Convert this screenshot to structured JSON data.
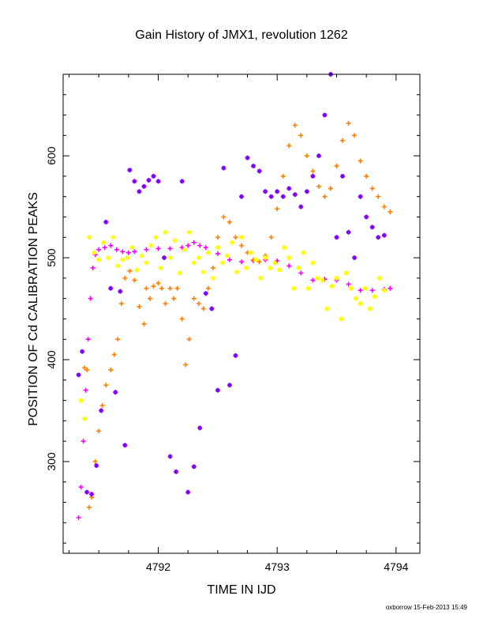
{
  "chart_data": {
    "type": "scatter",
    "title": "Gain History of JMX1, revolution 1262",
    "xlabel": "TIME IN IJD",
    "ylabel": "POSITION OF Cd CALIBRATION PEAKS",
    "xlim": [
      4791.2,
      4794.2
    ],
    "ylim": [
      210,
      680
    ],
    "xticks": [
      4792,
      4793,
      4794
    ],
    "yticks": [
      300,
      400,
      500,
      600
    ],
    "grid": false,
    "legend": "none",
    "series": [
      {
        "color": "#ff00ff",
        "marker": "+",
        "x": [
          4791.33,
          4791.35,
          4791.37,
          4791.39,
          4791.41,
          4791.43,
          4791.45,
          4791.47,
          4791.5,
          4791.55,
          4791.6,
          4791.65,
          4791.7,
          4791.75,
          4791.8,
          4791.9,
          4792.0,
          4792.1,
          4792.2,
          4792.25,
          4792.3,
          4792.35,
          4792.4,
          4792.5,
          4792.6,
          4792.7,
          4792.8,
          4792.9,
          4793.0,
          4793.1,
          4793.2,
          4793.3,
          4793.4,
          4793.5,
          4793.6,
          4793.7,
          4793.8,
          4793.9,
          4793.95
        ],
        "y": [
          245,
          275,
          320,
          370,
          420,
          460,
          490,
          503,
          508,
          510,
          512,
          508,
          506,
          505,
          506,
          508,
          509,
          509,
          510,
          512,
          515,
          512,
          510,
          504,
          498,
          496,
          497,
          498,
          497,
          492,
          485,
          478,
          479,
          478,
          474,
          468,
          468,
          469,
          470
        ]
      },
      {
        "color": "#ff8000",
        "marker": "+",
        "x": [
          4791.38,
          4791.4,
          4791.42,
          4791.44,
          4791.47,
          4791.5,
          4791.53,
          4791.56,
          4791.6,
          4791.63,
          4791.66,
          4791.69,
          4791.72,
          4791.76,
          4791.8,
          4791.84,
          4791.88,
          4791.9,
          4791.93,
          4791.96,
          4792.0,
          4792.03,
          4792.06,
          4792.1,
          4792.13,
          4792.16,
          4792.2,
          4792.23,
          4792.26,
          4792.3,
          4792.34,
          4792.38,
          4792.42,
          4792.46,
          4792.5,
          4792.55,
          4792.6,
          4792.65,
          4792.7,
          4792.75,
          4792.8,
          4792.85,
          4792.9,
          4792.95,
          4793.0,
          4793.05,
          4793.1,
          4793.15,
          4793.2,
          4793.25,
          4793.3,
          4793.35,
          4793.4,
          4793.45,
          4793.5,
          4793.55,
          4793.6,
          4793.65,
          4793.7,
          4793.75,
          4793.8,
          4793.85,
          4793.9,
          4793.95
        ],
        "y": [
          392,
          390,
          255,
          265,
          300,
          330,
          355,
          375,
          390,
          405,
          420,
          455,
          480,
          487,
          478,
          452,
          435,
          470,
          460,
          472,
          475,
          470,
          455,
          470,
          460,
          470,
          440,
          395,
          420,
          460,
          455,
          450,
          470,
          490,
          520,
          540,
          535,
          520,
          512,
          505,
          498,
          496,
          502,
          520,
          548,
          580,
          610,
          630,
          620,
          600,
          585,
          570,
          560,
          568,
          590,
          615,
          632,
          620,
          595,
          580,
          568,
          560,
          550,
          545
        ]
      },
      {
        "color": "#ffff00",
        "marker": "*",
        "x": [
          4791.35,
          4791.38,
          4791.42,
          4791.46,
          4791.5,
          4791.54,
          4791.58,
          4791.62,
          4791.66,
          4791.7,
          4791.74,
          4791.78,
          4791.82,
          4791.86,
          4791.9,
          4791.94,
          4791.98,
          4792.02,
          4792.06,
          4792.1,
          4792.14,
          4792.18,
          4792.22,
          4792.26,
          4792.3,
          4792.34,
          4792.38,
          4792.42,
          4792.46,
          4792.5,
          4792.54,
          4792.58,
          4792.62,
          4792.66,
          4792.7,
          4792.74,
          4792.78,
          4792.82,
          4792.86,
          4792.9,
          4792.94,
          4792.98,
          4793.02,
          4793.06,
          4793.1,
          4793.14,
          4793.18,
          4793.22,
          4793.26,
          4793.3,
          4793.34,
          4793.38,
          4793.42,
          4793.46,
          4793.5,
          4793.54,
          4793.58,
          4793.62,
          4793.66,
          4793.7,
          4793.74,
          4793.78,
          4793.82,
          4793.86,
          4793.9
        ],
        "y": [
          360,
          342,
          520,
          505,
          498,
          515,
          500,
          520,
          492,
          498,
          500,
          510,
          488,
          502,
          495,
          512,
          520,
          490,
          525,
          500,
          517,
          485,
          508,
          525,
          495,
          500,
          486,
          505,
          480,
          510,
          495,
          502,
          515,
          486,
          520,
          490,
          505,
          498,
          480,
          500,
          490,
          495,
          488,
          510,
          500,
          470,
          490,
          505,
          470,
          495,
          480,
          478,
          450,
          472,
          480,
          440,
          485,
          470,
          460,
          455,
          470,
          450,
          462,
          480,
          468
        ]
      },
      {
        "color": "#8000ff",
        "marker": "*",
        "x": [
          4791.33,
          4791.36,
          4791.4,
          4791.44,
          4791.48,
          4791.52,
          4791.56,
          4791.6,
          4791.64,
          4791.68,
          4791.72,
          4791.76,
          4791.8,
          4791.84,
          4791.88,
          4791.92,
          4791.96,
          4792.0,
          4792.05,
          4792.1,
          4792.15,
          4792.2,
          4792.25,
          4792.3,
          4792.35,
          4792.4,
          4792.45,
          4792.5,
          4792.55,
          4792.6,
          4792.65,
          4792.7,
          4792.75,
          4792.8,
          4792.85,
          4792.9,
          4792.95,
          4793.0,
          4793.05,
          4793.1,
          4793.15,
          4793.2,
          4793.25,
          4793.3,
          4793.35,
          4793.4,
          4793.45,
          4793.5,
          4793.55,
          4793.6,
          4793.65,
          4793.7,
          4793.75,
          4793.8,
          4793.85,
          4793.9
        ],
        "y": [
          385,
          408,
          270,
          268,
          296,
          350,
          535,
          470,
          368,
          467,
          316,
          586,
          575,
          565,
          570,
          576,
          580,
          575,
          500,
          305,
          290,
          575,
          270,
          295,
          333,
          465,
          450,
          370,
          588,
          375,
          404,
          560,
          598,
          590,
          585,
          565,
          560,
          565,
          560,
          568,
          562,
          550,
          565,
          580,
          600,
          640,
          680,
          520,
          580,
          525,
          500,
          560,
          540,
          530,
          520,
          522
        ]
      }
    ]
  },
  "footer": "oxborrow 15-Feb-2013 15:49",
  "colors": {
    "magenta": "#ff00ff",
    "orange": "#ff8000",
    "yellow": "#ffff00",
    "purple": "#8000ff"
  }
}
